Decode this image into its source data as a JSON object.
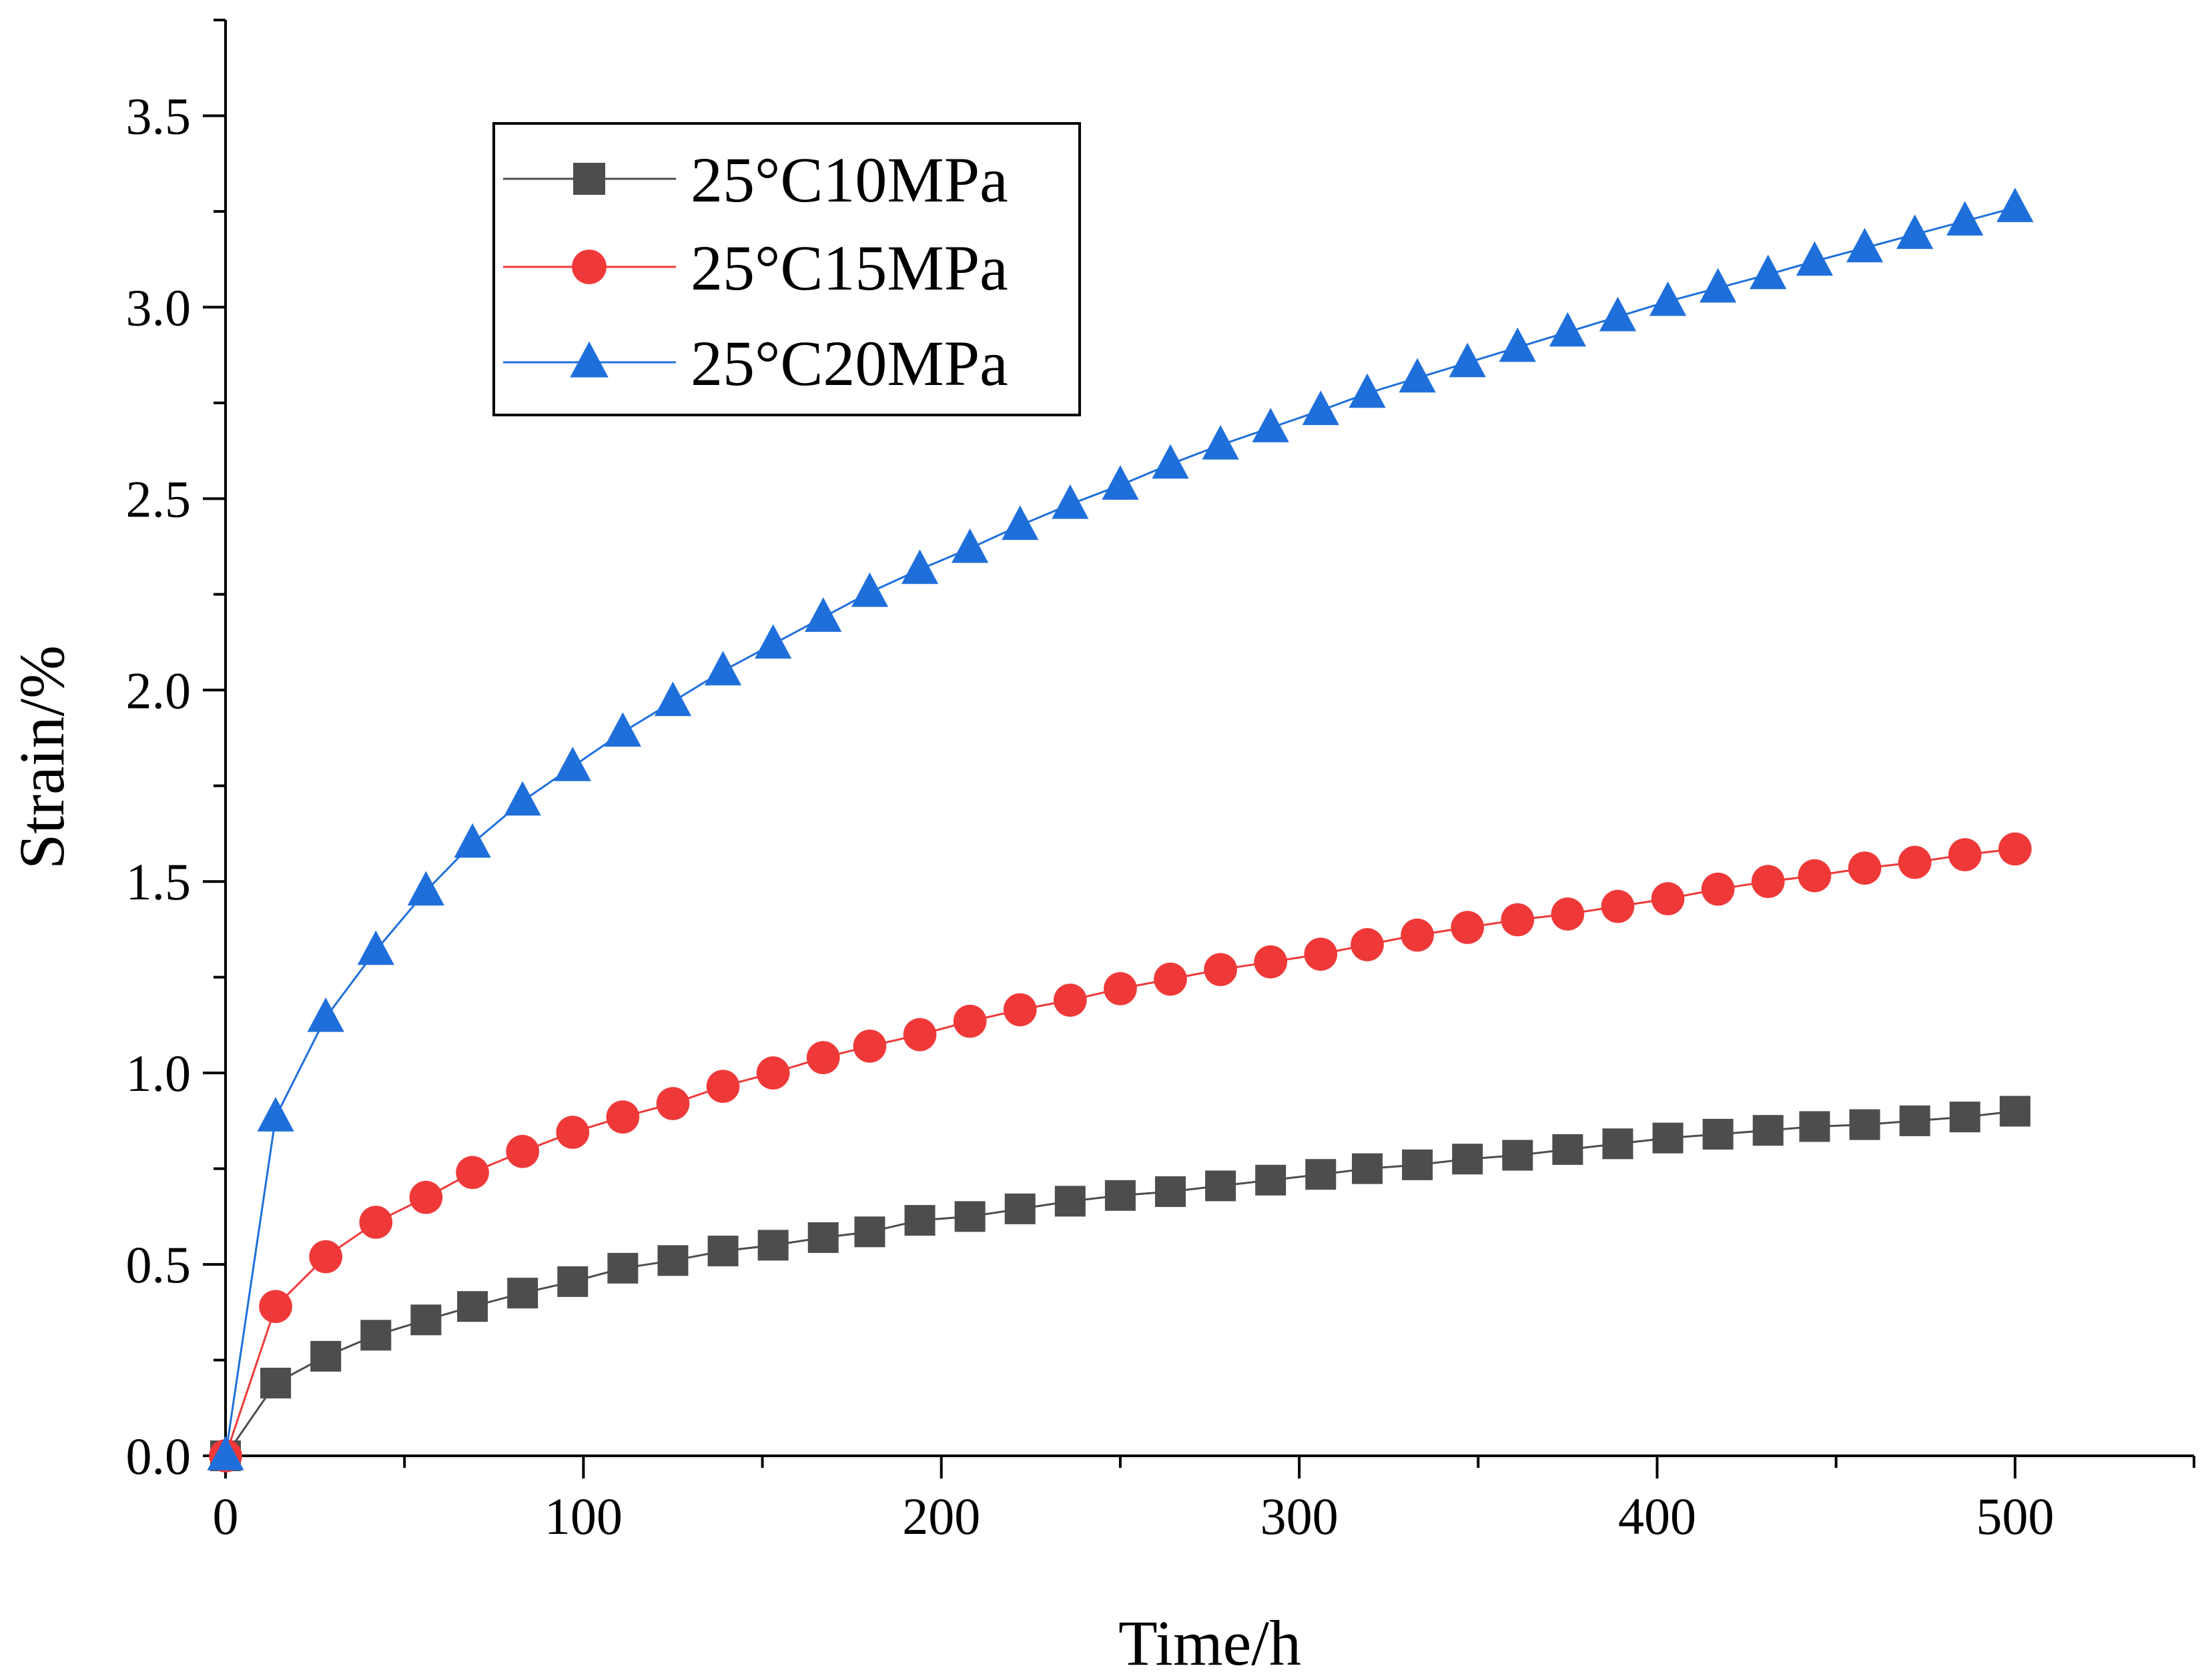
{
  "chart_data": {
    "type": "line",
    "title": "",
    "xlabel": "Time/h",
    "ylabel": "Strain/%",
    "xlim": [
      0,
      550
    ],
    "ylim": [
      0,
      3.75
    ],
    "xticks": [
      0,
      100,
      200,
      300,
      400,
      500
    ],
    "xtick_labels": [
      "0",
      "100",
      "200",
      "300",
      "400",
      "500"
    ],
    "xminor": [
      50,
      150,
      250,
      350,
      450,
      550
    ],
    "yticks": [
      0,
      0.5,
      1.0,
      1.5,
      2.0,
      2.5,
      3.0,
      3.5
    ],
    "ytick_labels": [
      "0.0",
      "0.5",
      "1.0",
      "1.5",
      "2.0",
      "2.5",
      "3.0",
      "3.5"
    ],
    "yminor": [
      0.25,
      0.75,
      1.25,
      1.75,
      2.25,
      2.75,
      3.25,
      3.75
    ],
    "grid": false,
    "legend_position": "top-left",
    "x": [
      0,
      14,
      28,
      42,
      56,
      69,
      83,
      97,
      111,
      125,
      139,
      153,
      167,
      180,
      194,
      208,
      222,
      236,
      250,
      264,
      278,
      292,
      306,
      319,
      333,
      347,
      361,
      375,
      389,
      403,
      417,
      431,
      444,
      458,
      472,
      486,
      500
    ],
    "series": [
      {
        "name": "25°C10MPa",
        "color": "#4d4d4d",
        "marker": "square",
        "values": [
          0,
          0.19,
          0.26,
          0.315,
          0.355,
          0.39,
          0.425,
          0.455,
          0.49,
          0.51,
          0.535,
          0.55,
          0.57,
          0.585,
          0.615,
          0.625,
          0.645,
          0.665,
          0.68,
          0.69,
          0.705,
          0.72,
          0.735,
          0.75,
          0.76,
          0.775,
          0.785,
          0.8,
          0.815,
          0.83,
          0.84,
          0.85,
          0.86,
          0.865,
          0.875,
          0.885,
          0.9
        ]
      },
      {
        "name": "25°C15MPa",
        "color": "#ef3939",
        "marker": "circle",
        "values": [
          0,
          0.39,
          0.52,
          0.61,
          0.675,
          0.74,
          0.795,
          0.845,
          0.885,
          0.92,
          0.965,
          1.0,
          1.04,
          1.07,
          1.1,
          1.135,
          1.165,
          1.19,
          1.22,
          1.245,
          1.27,
          1.29,
          1.31,
          1.335,
          1.36,
          1.38,
          1.4,
          1.415,
          1.435,
          1.455,
          1.48,
          1.5,
          1.515,
          1.535,
          1.55,
          1.57,
          1.585
        ]
      },
      {
        "name": "25°C20MPa",
        "color": "#1f6fdb",
        "marker": "triangle",
        "values": [
          0,
          0.885,
          1.145,
          1.32,
          1.475,
          1.6,
          1.71,
          1.8,
          1.89,
          1.97,
          2.05,
          2.12,
          2.19,
          2.255,
          2.315,
          2.37,
          2.43,
          2.485,
          2.535,
          2.59,
          2.64,
          2.685,
          2.73,
          2.775,
          2.815,
          2.855,
          2.895,
          2.935,
          2.975,
          3.015,
          3.05,
          3.085,
          3.12,
          3.155,
          3.19,
          3.225,
          3.26
        ]
      }
    ]
  }
}
